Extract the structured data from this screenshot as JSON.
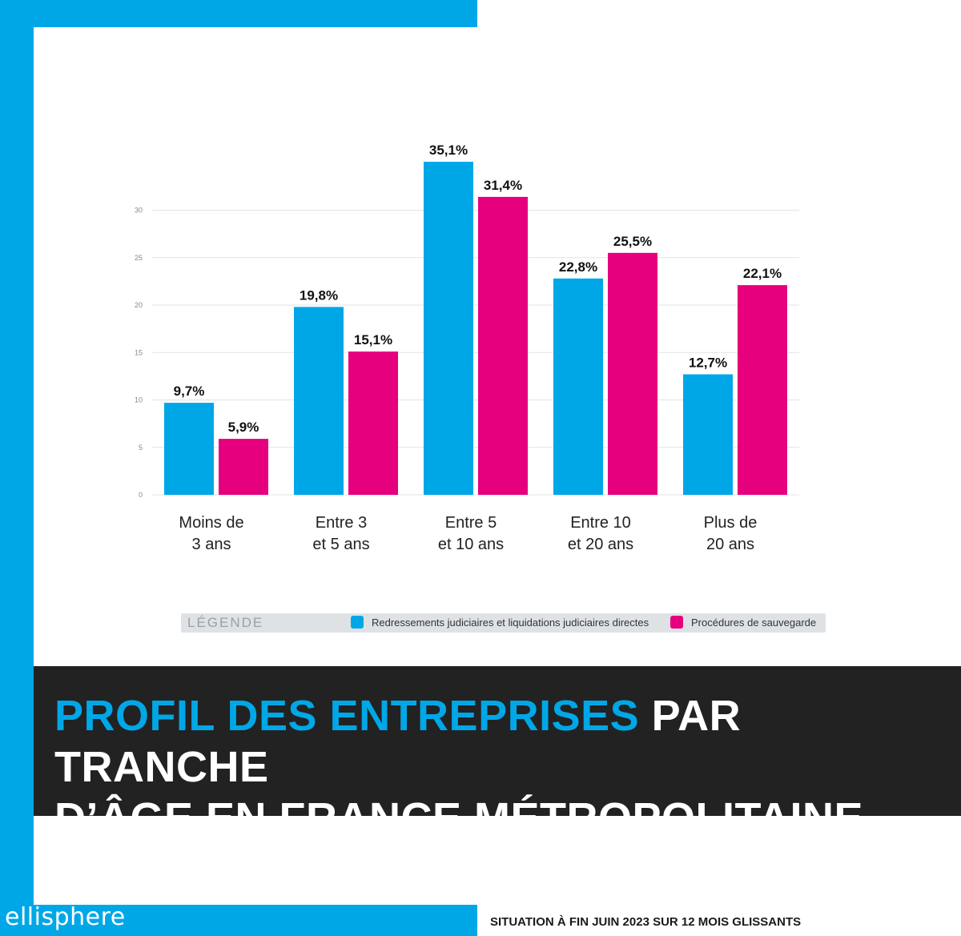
{
  "brand": "ellisphere",
  "footnote": "SITUATION À FIN JUIN 2023 SUR 12 MOIS GLISSANTS",
  "title": {
    "accent": "PROFIL DES ENTREPRISES",
    "rest_line1": " PAR TRANCHE",
    "line2": "D’ÂGE EN FRANCE MÉTROPOLITAINE"
  },
  "legend": {
    "title": "LÉGENDE",
    "items": [
      {
        "label": "Redressements judiciaires et liquidations judiciaires directes",
        "color": "#00a7e7"
      },
      {
        "label": "Procédures de sauvegarde",
        "color": "#e6007e"
      }
    ]
  },
  "chart_data": {
    "type": "bar",
    "categories": [
      [
        "Moins de",
        "3 ans"
      ],
      [
        "Entre 3",
        "et 5 ans"
      ],
      [
        "Entre 5",
        "et 10 ans"
      ],
      [
        "Entre 10",
        "et 20 ans"
      ],
      [
        "Plus de",
        "20 ans"
      ]
    ],
    "series": [
      {
        "name": "Redressements judiciaires et liquidations judiciaires directes",
        "color": "#00a7e7",
        "values": [
          9.7,
          19.8,
          35.1,
          22.8,
          12.7
        ],
        "labels": [
          "9,7%",
          "19,8%",
          "35,1%",
          "22,8%",
          "12,7%"
        ]
      },
      {
        "name": "Procédures de sauvegarde",
        "color": "#e6007e",
        "values": [
          5.9,
          15.1,
          31.4,
          25.5,
          22.1
        ],
        "labels": [
          "5,9%",
          "15,1%",
          "31,4%",
          "25,5%",
          "22,1%"
        ]
      }
    ],
    "yticks": [
      0,
      5,
      10,
      15,
      20,
      25,
      30
    ],
    "ylim": [
      0,
      35.1
    ],
    "grid": true,
    "legend_position": "bottom"
  }
}
